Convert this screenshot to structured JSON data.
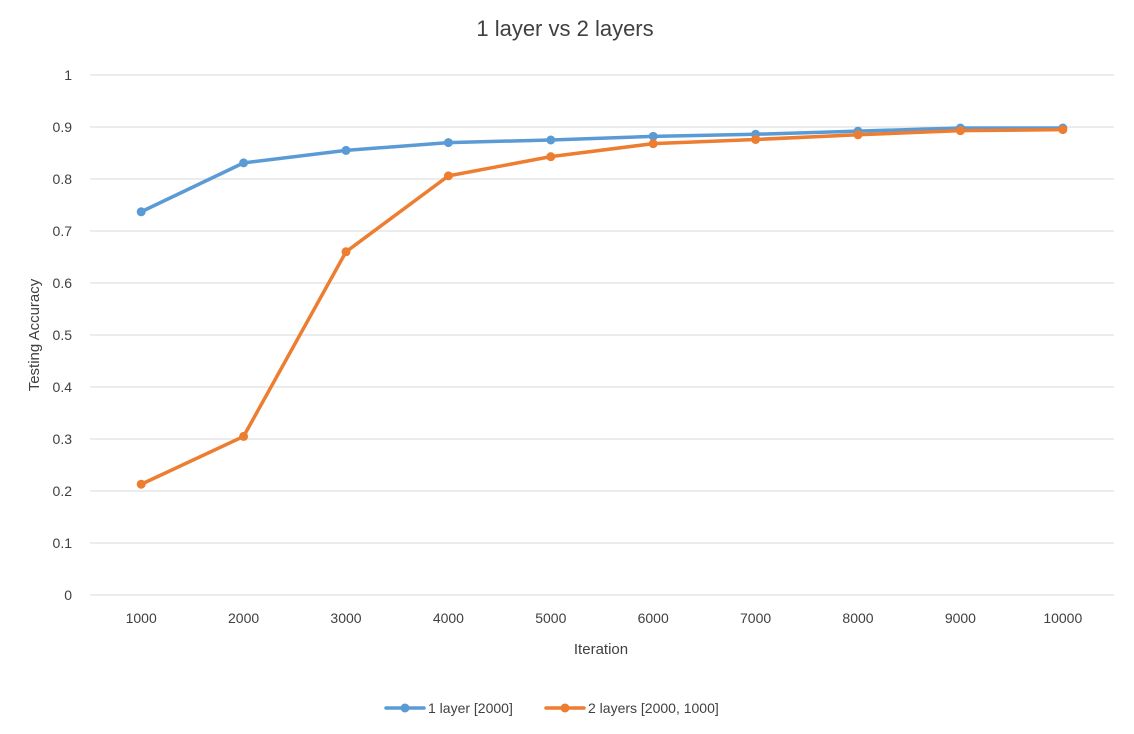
{
  "chart_data": {
    "type": "line",
    "title": "1 layer vs 2 layers",
    "xlabel": "Iteration",
    "ylabel": "Testing Accuracy",
    "x": [
      1000,
      2000,
      3000,
      4000,
      5000,
      6000,
      7000,
      8000,
      9000,
      10000
    ],
    "x_tick_labels": [
      "1000",
      "2000",
      "3000",
      "4000",
      "5000",
      "6000",
      "7000",
      "8000",
      "9000",
      "10000"
    ],
    "ylim": [
      0,
      1
    ],
    "y_ticks": [
      0,
      0.1,
      0.2,
      0.3,
      0.4,
      0.5,
      0.6,
      0.7,
      0.8,
      0.9,
      1
    ],
    "y_tick_labels": [
      "0",
      "0.1",
      "0.2",
      "0.3",
      "0.4",
      "0.5",
      "0.6",
      "0.7",
      "0.8",
      "0.9",
      "1"
    ],
    "grid": true,
    "legend_position": "bottom",
    "series": [
      {
        "name": "1 layer [2000]",
        "color": "#5b9bd5",
        "values": [
          0.737,
          0.831,
          0.855,
          0.87,
          0.875,
          0.882,
          0.886,
          0.892,
          0.898,
          0.898
        ]
      },
      {
        "name": "2 layers [2000, 1000]",
        "color": "#ed7d31",
        "values": [
          0.213,
          0.305,
          0.66,
          0.806,
          0.843,
          0.868,
          0.876,
          0.885,
          0.893,
          0.895
        ]
      }
    ]
  }
}
